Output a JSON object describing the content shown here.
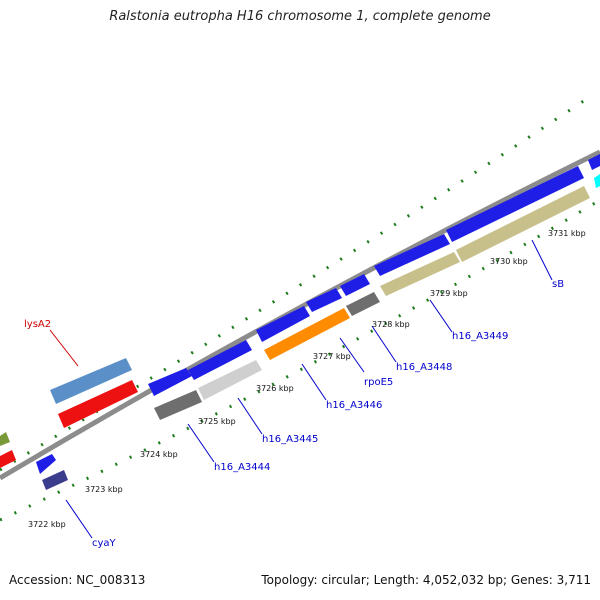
{
  "title": "Ralstonia eutropha H16 chromosome 1, complete genome",
  "footer": {
    "accession": "Accession: NC_008313",
    "summary": "Topology: circular; Length: 4,052,032 bp; Genes: 3,711"
  },
  "colors": {
    "background": "#ffffff",
    "backbone": "#8c8c8c",
    "tick": "#1e7d1e",
    "gene_label": "#0000cc",
    "highlight_label": "#cc0000"
  },
  "map": {
    "scale_labels": [
      "3722 kbp",
      "3723 kbp",
      "3724 kbp",
      "3725 kbp",
      "3726 kbp",
      "3727 kbp",
      "3728 kbp",
      "3729 kbp",
      "3730 kbp",
      "3731 kbp"
    ],
    "gene_labels": [
      {
        "text": "cyaY",
        "color": "#0000cc"
      },
      {
        "text": "h16_A3444",
        "color": "#0000cc"
      },
      {
        "text": "h16_A3445",
        "color": "#0000cc"
      },
      {
        "text": "h16_A3446",
        "color": "#0000cc"
      },
      {
        "text": "rpoE5",
        "color": "#0000cc"
      },
      {
        "text": "h16_A3448",
        "color": "#0000cc"
      },
      {
        "text": "h16_A3449",
        "color": "#0000cc"
      },
      {
        "text": "sB",
        "color": "#0000cc"
      },
      {
        "text": "lysA2",
        "color": "#cc0000"
      }
    ]
  }
}
